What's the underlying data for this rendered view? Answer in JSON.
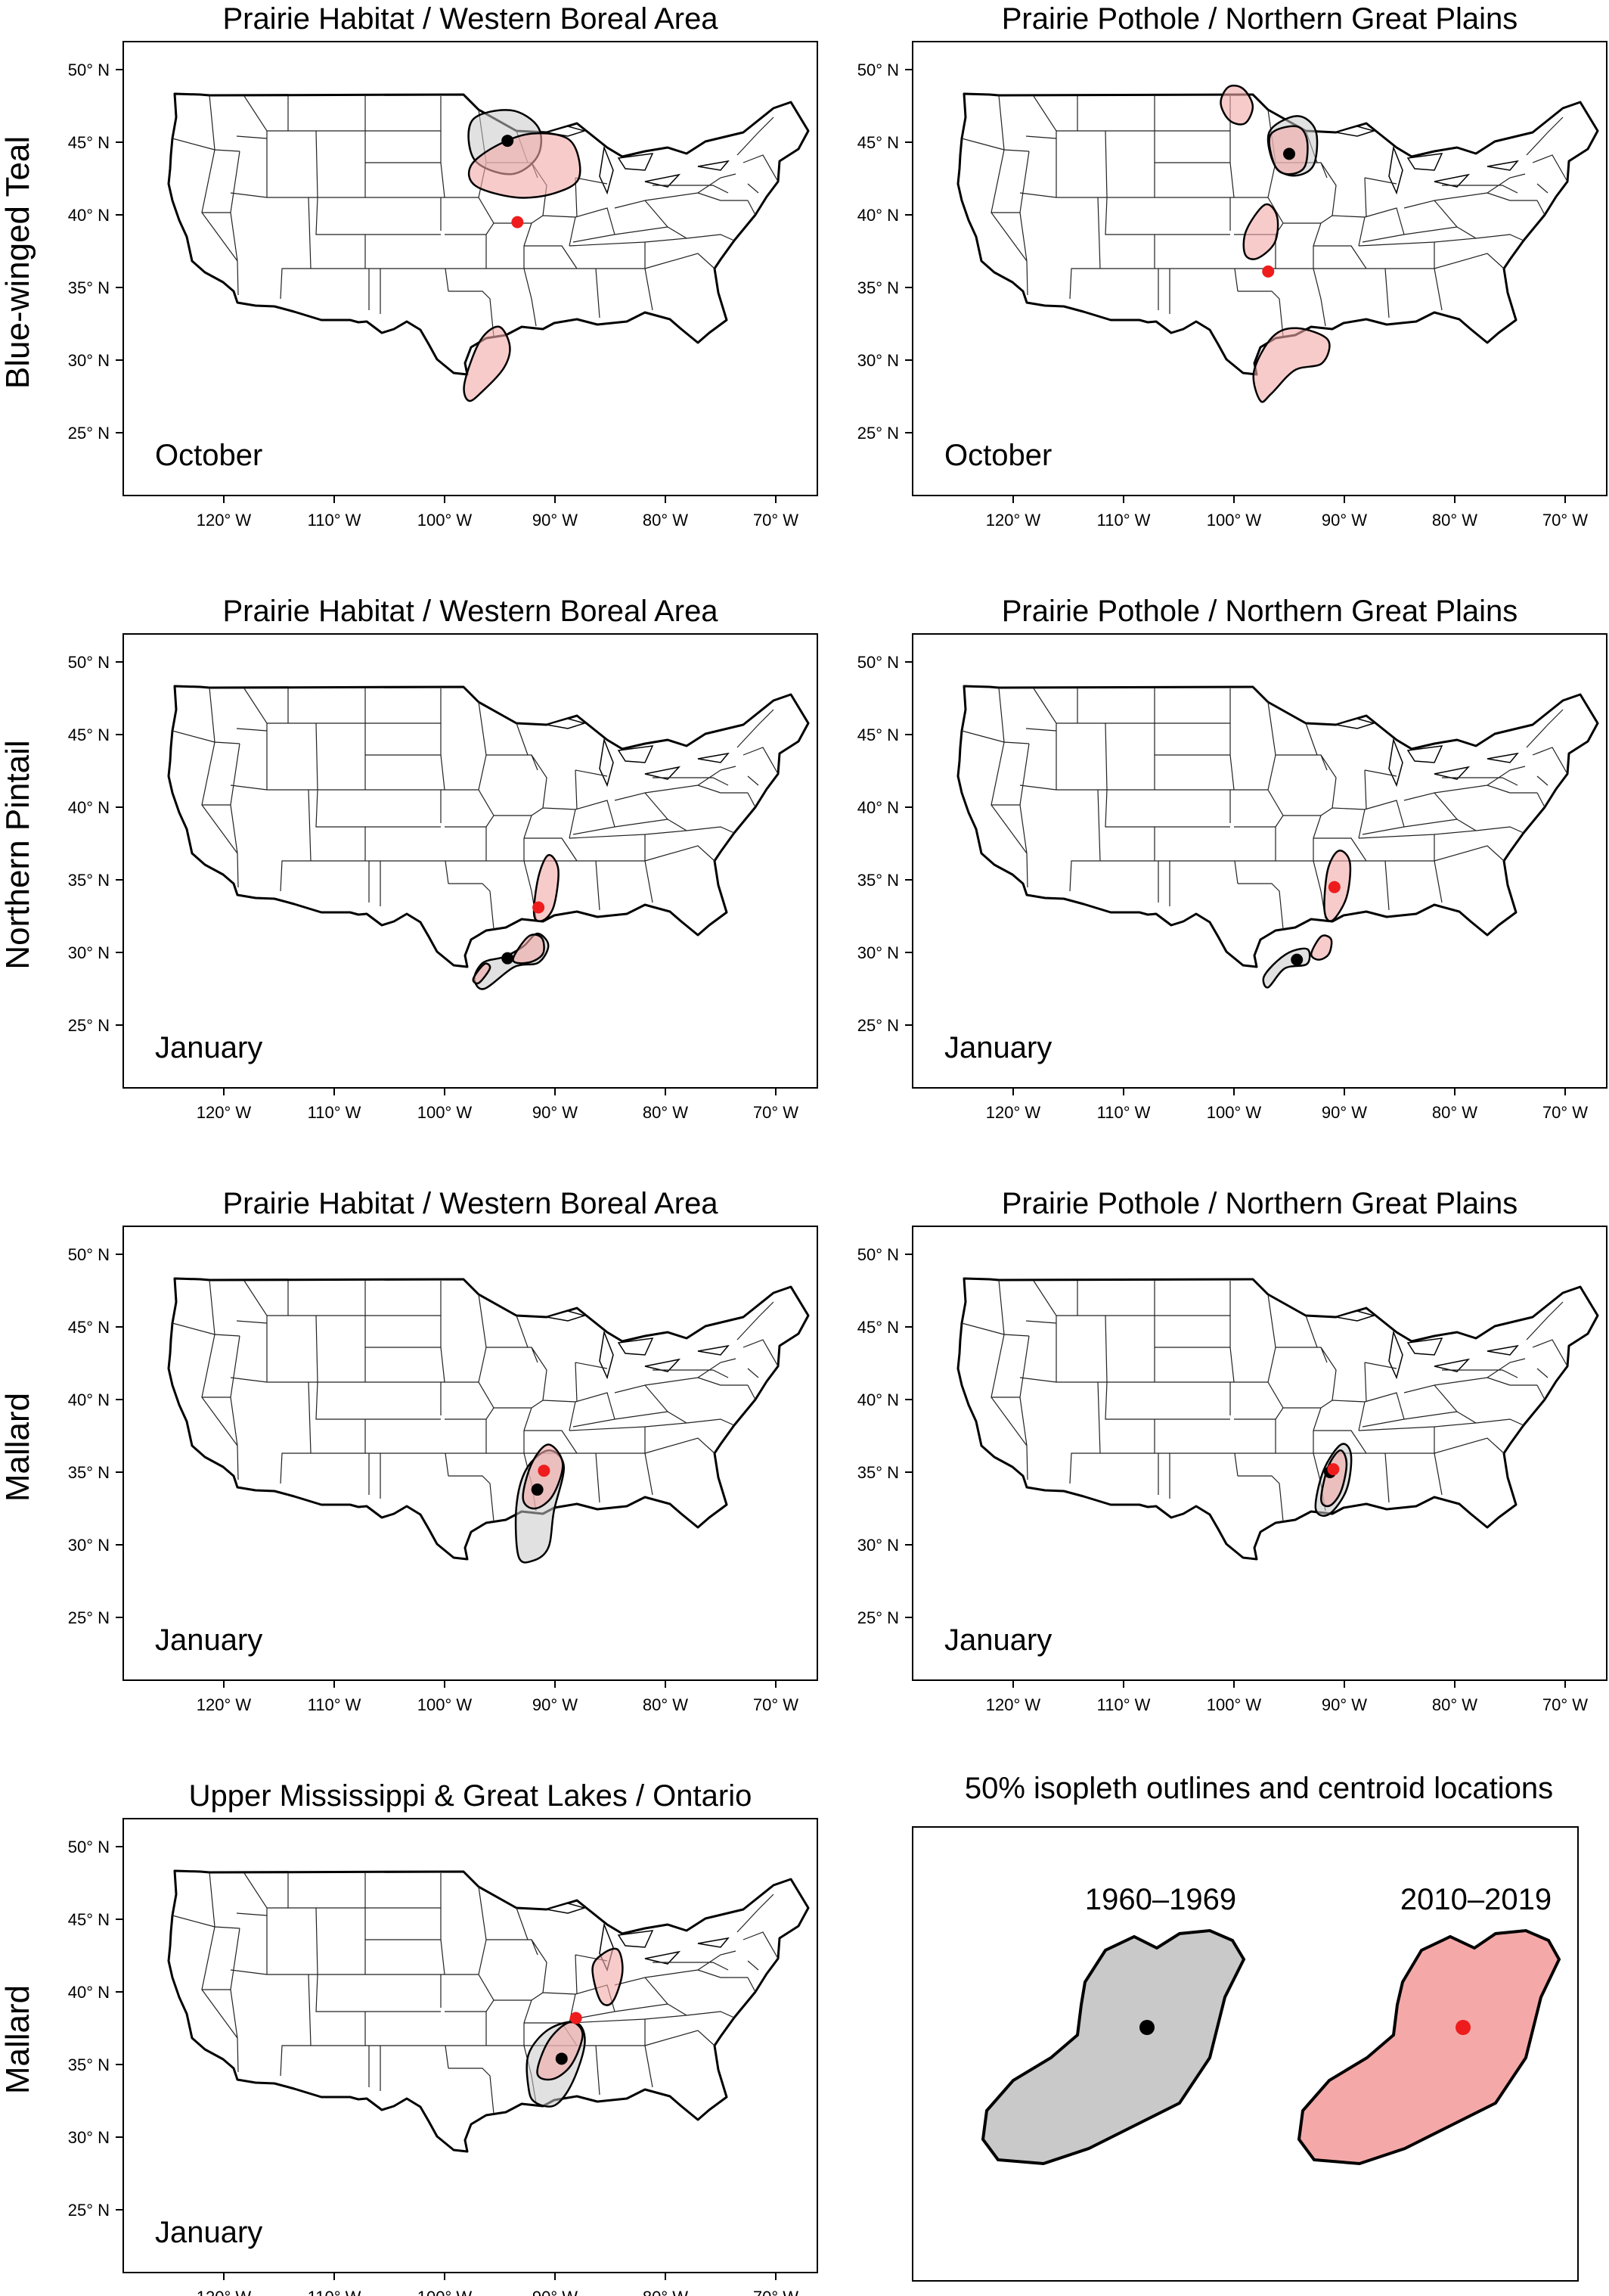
{
  "row_labels": [
    "Blue-winged Teal",
    "Northern Pintail",
    "Mallard",
    "Mallard"
  ],
  "panels": [
    {
      "title": "Prairie Habitat / Western Boreal Area",
      "month": "October",
      "isopleths_1960_1969": [
        [
          [
            -97.5,
            46.5
          ],
          [
            -94,
            47.2
          ],
          [
            -91.5,
            46
          ],
          [
            -91.6,
            44
          ],
          [
            -94,
            42.8
          ],
          [
            -97.3,
            43.8
          ]
        ]
      ],
      "isopleths_2010_2019": [
        [
          [
            -97.6,
            43.4
          ],
          [
            -95.2,
            44.8
          ],
          [
            -92,
            45.6
          ],
          [
            -88.6,
            45.1
          ],
          [
            -87.8,
            42.6
          ],
          [
            -90,
            41.5
          ],
          [
            -93.5,
            41.2
          ],
          [
            -97.2,
            42
          ]
        ],
        [
          [
            -98.2,
            28.4
          ],
          [
            -96.8,
            31.3
          ],
          [
            -95.1,
            32.3
          ],
          [
            -94.1,
            31
          ],
          [
            -94.6,
            29.5
          ],
          [
            -96.5,
            27.9
          ],
          [
            -97.8,
            27.2
          ]
        ]
      ],
      "centroid_1960_1969": [
        -94.3,
        45.1
      ],
      "centroid_2010_2019": [
        -93.4,
        39.5
      ]
    },
    {
      "title": "Prairie Pothole / Northern Great Plains",
      "month": "October",
      "isopleths_1960_1969": [
        [
          [
            -96.8,
            45.7
          ],
          [
            -94.3,
            46.8
          ],
          [
            -92.6,
            45.8
          ],
          [
            -92.8,
            43.4
          ],
          [
            -94.6,
            42.7
          ],
          [
            -96.3,
            43.4
          ]
        ]
      ],
      "isopleths_2010_2019": [
        [
          [
            -96.7,
            45.5
          ],
          [
            -94.4,
            46.1
          ],
          [
            -93.4,
            45.2
          ],
          [
            -93.6,
            43.3
          ],
          [
            -95.1,
            42.8
          ],
          [
            -96.3,
            43.4
          ]
        ],
        [
          [
            -101.2,
            47.7
          ],
          [
            -100.5,
            48.8
          ],
          [
            -99.2,
            48.7
          ],
          [
            -98.3,
            47.5
          ],
          [
            -99,
            46.3
          ],
          [
            -100.4,
            46.5
          ]
        ],
        [
          [
            -99,
            37.3
          ],
          [
            -98.9,
            38.9
          ],
          [
            -97.2,
            40.7
          ],
          [
            -96.1,
            39.9
          ],
          [
            -96.3,
            38.1
          ],
          [
            -97.9,
            37
          ]
        ],
        [
          [
            -98.2,
            29.2
          ],
          [
            -96.5,
            31.6
          ],
          [
            -94.3,
            32.2
          ],
          [
            -91.5,
            31.4
          ],
          [
            -92,
            29.8
          ],
          [
            -94.5,
            29.3
          ],
          [
            -96.6,
            27.7
          ],
          [
            -97.6,
            27.2
          ]
        ]
      ],
      "centroid_1960_1969": [
        -95.0,
        44.2
      ],
      "centroid_2010_2019": [
        -96.9,
        36.1
      ]
    },
    {
      "title": "Prairie Habitat / Western Boreal Area",
      "month": "January",
      "isopleths_1960_1969": [
        [
          [
            -97.3,
            28.2
          ],
          [
            -96.5,
            29.3
          ],
          [
            -94.6,
            29.7
          ],
          [
            -92.9,
            30.4
          ],
          [
            -91.6,
            31.3
          ],
          [
            -90.6,
            30.5
          ],
          [
            -91.5,
            29.3
          ],
          [
            -93.7,
            29
          ],
          [
            -96.4,
            27.5
          ]
        ]
      ],
      "isopleths_2010_2019": [
        [
          [
            -91.9,
            32.6
          ],
          [
            -91.5,
            35.2
          ],
          [
            -90.6,
            36.7
          ],
          [
            -89.7,
            35.7
          ],
          [
            -90.1,
            33.2
          ],
          [
            -91.1,
            32.2
          ]
        ],
        [
          [
            -93.8,
            29.5
          ],
          [
            -92.4,
            31.1
          ],
          [
            -91.2,
            31
          ],
          [
            -91.1,
            29.9
          ],
          [
            -92.4,
            29.3
          ]
        ],
        [
          [
            -97.4,
            28.2
          ],
          [
            -96.4,
            29.2
          ],
          [
            -95.9,
            28.9
          ],
          [
            -96.9,
            27.9
          ]
        ]
      ],
      "centroid_1960_1969": [
        -94.3,
        29.6
      ],
      "centroid_2010_2019": [
        -91.5,
        33.1
      ]
    },
    {
      "title": "Prairie Pothole / Northern Great Plains",
      "month": "January",
      "isopleths_1960_1969": [
        [
          [
            -97.3,
            28.3
          ],
          [
            -96.1,
            29.4
          ],
          [
            -94.7,
            30.1
          ],
          [
            -93.3,
            30.2
          ],
          [
            -93.4,
            29.2
          ],
          [
            -95.4,
            28.9
          ],
          [
            -96.9,
            27.6
          ]
        ]
      ],
      "isopleths_2010_2019": [
        [
          [
            -91.8,
            32.9
          ],
          [
            -91.5,
            35.7
          ],
          [
            -90.5,
            37
          ],
          [
            -89.5,
            36.2
          ],
          [
            -89.8,
            33.8
          ],
          [
            -91.1,
            32.2
          ]
        ],
        [
          [
            -93,
            29.9
          ],
          [
            -92.1,
            31.1
          ],
          [
            -91.2,
            30.9
          ],
          [
            -91.4,
            29.9
          ],
          [
            -92.3,
            29.5
          ]
        ]
      ],
      "centroid_1960_1969": [
        -94.3,
        29.5
      ],
      "centroid_2010_2019": [
        -90.9,
        34.5
      ]
    },
    {
      "title": "Prairie Habitat / Western Boreal Area",
      "month": "January",
      "isopleths_1960_1969": [
        [
          [
            -93.3,
            29.2
          ],
          [
            -93.5,
            32.6
          ],
          [
            -92.6,
            35.2
          ],
          [
            -90.6,
            36.5
          ],
          [
            -89.2,
            35.4
          ],
          [
            -90.1,
            32.3
          ],
          [
            -90.6,
            29.8
          ],
          [
            -92,
            28.9
          ]
        ]
      ],
      "isopleths_2010_2019": [
        [
          [
            -92.9,
            33.2
          ],
          [
            -92.1,
            35.6
          ],
          [
            -90.6,
            36.9
          ],
          [
            -89.3,
            35.6
          ],
          [
            -90.2,
            33.4
          ],
          [
            -91.8,
            32.5
          ]
        ]
      ],
      "centroid_1960_1969": [
        -91.6,
        33.8
      ],
      "centroid_2010_2019": [
        -91.0,
        35.1
      ]
    },
    {
      "title": "Prairie Pothole / Northern Great Plains",
      "month": "January",
      "isopleths_1960_1969": [
        [
          [
            -92.6,
            32.5
          ],
          [
            -91.9,
            35.1
          ],
          [
            -90.3,
            36.9
          ],
          [
            -89.4,
            36.2
          ],
          [
            -89.8,
            33.8
          ],
          [
            -91.4,
            32.1
          ]
        ]
      ],
      "isopleths_2010_2019": [
        [
          [
            -92.1,
            33.1
          ],
          [
            -91.5,
            35.3
          ],
          [
            -90.4,
            36.5
          ],
          [
            -89.8,
            35.6
          ],
          [
            -90.3,
            33.7
          ],
          [
            -91.3,
            32.7
          ]
        ]
      ],
      "centroid_1960_1969": [
        -91.3,
        35.0
      ],
      "centroid_2010_2019": [
        -91.0,
        35.2
      ]
    },
    {
      "title": "Upper Mississippi & Great Lakes / Ontario",
      "month": "January",
      "isopleths_1960_1969": [
        [
          [
            -92.4,
            33.4
          ],
          [
            -92.4,
            35.7
          ],
          [
            -90.6,
            37.4
          ],
          [
            -88.1,
            37.9
          ],
          [
            -87.3,
            36.5
          ],
          [
            -88.4,
            33.8
          ],
          [
            -90,
            32.2
          ],
          [
            -91.8,
            32.4
          ]
        ]
      ],
      "isopleths_2010_2019": [
        [
          [
            -91.6,
            34.4
          ],
          [
            -90.6,
            36.6
          ],
          [
            -88.7,
            37.9
          ],
          [
            -87.5,
            37.1
          ],
          [
            -88.5,
            35
          ],
          [
            -90.2,
            34
          ]
        ],
        [
          [
            -86.6,
            41.6
          ],
          [
            -85.7,
            42.6
          ],
          [
            -84.3,
            42.9
          ],
          [
            -83.9,
            41.3
          ],
          [
            -84.8,
            39.3
          ],
          [
            -85.9,
            39.4
          ]
        ]
      ],
      "centroid_1960_1969": [
        -89.4,
        35.4
      ],
      "centroid_2010_2019": [
        -88.1,
        38.2
      ]
    }
  ],
  "axis": {
    "lon_ticks": [
      "120° W",
      "110° W",
      "100° W",
      "90° W",
      "80° W",
      "70° W"
    ],
    "lat_ticks": [
      "50° N",
      "45° N",
      "40° N",
      "35° N",
      "30° N",
      "25° N"
    ]
  },
  "legend": {
    "title": "50% isopleth outlines and centroid locations",
    "period_1960_1969": "1960–1969",
    "period_2010_2019": "2010–2019",
    "color_1960_1969": "#c9c9c9",
    "color_2010_2019": "#f4a9a8",
    "centroid_color_1960_1969": "#000000",
    "centroid_color_2010_2019": "#ee1c1c"
  }
}
